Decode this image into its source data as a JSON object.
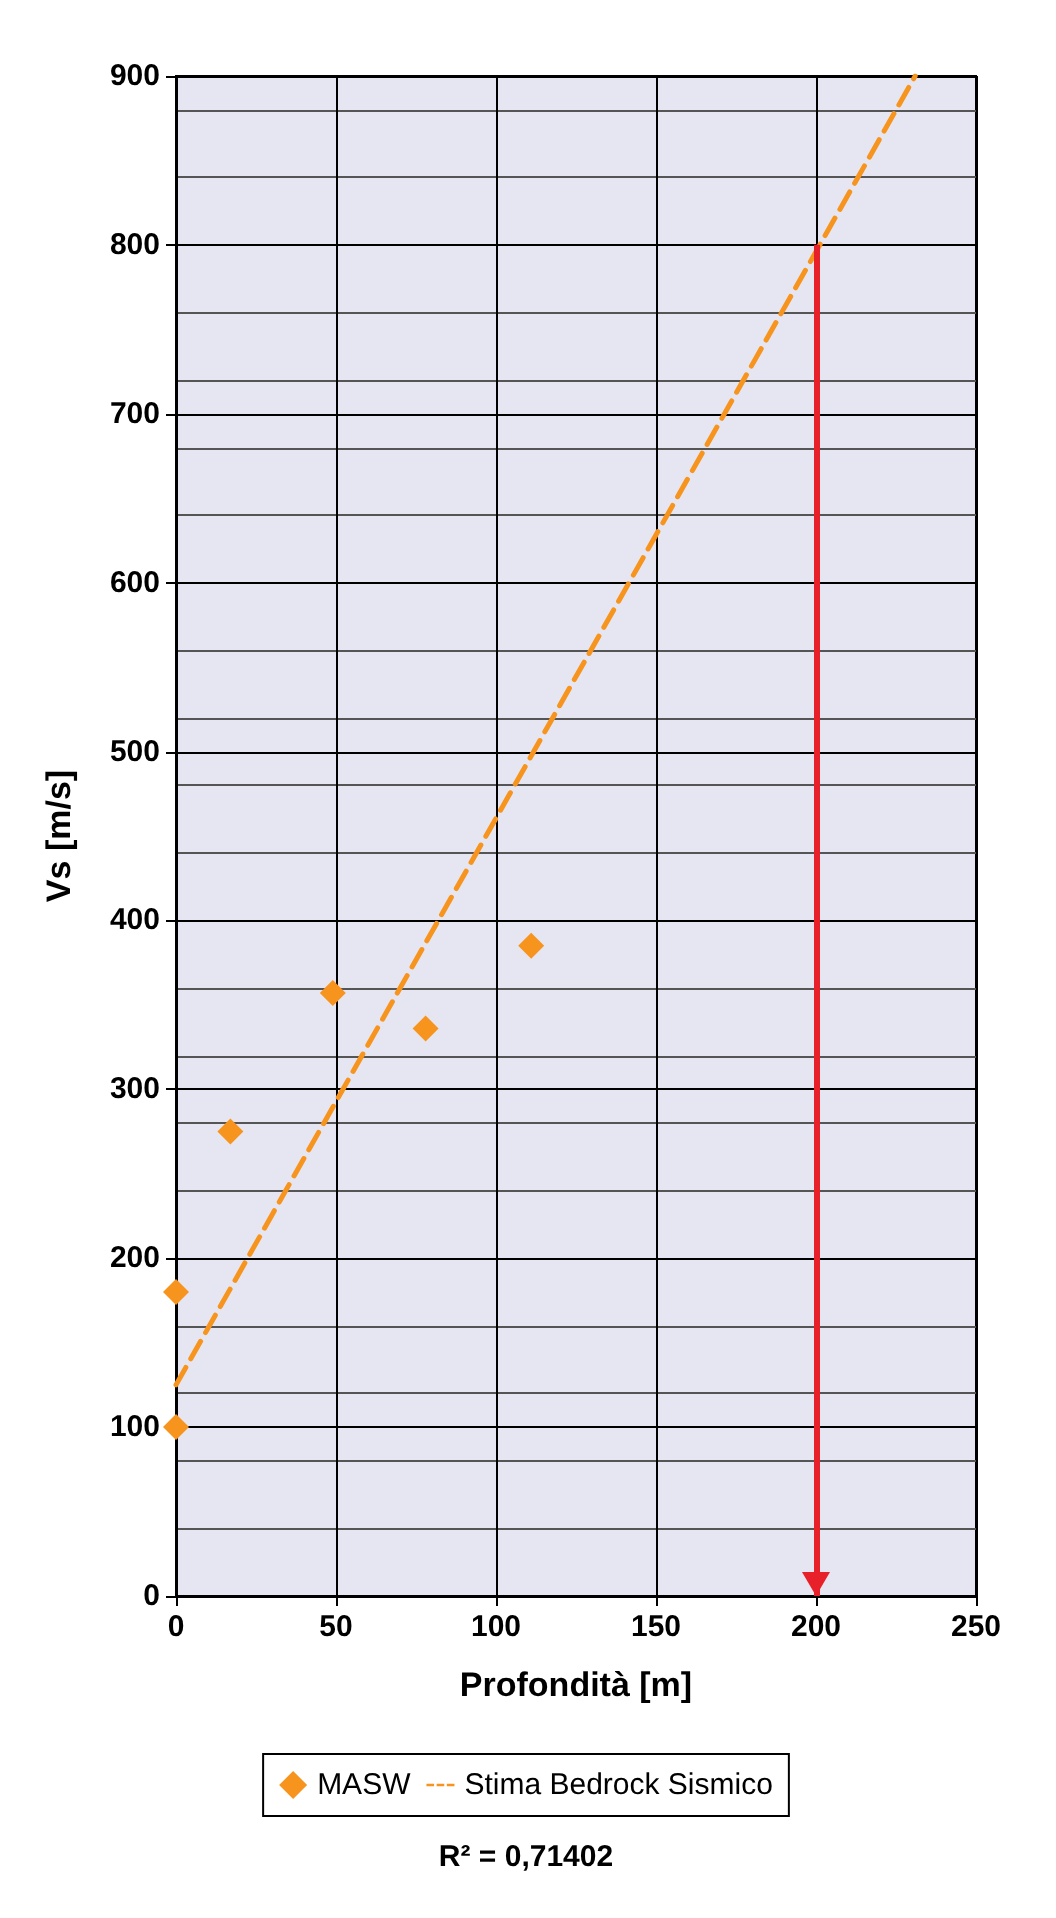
{
  "chart_data": {
    "type": "scatter",
    "xlabel": "Profondità [m]",
    "ylabel": "Vs [m/s]",
    "xlim": [
      0,
      250
    ],
    "xticks": [
      0,
      50,
      100,
      150,
      200,
      250
    ],
    "ylim": [
      0,
      900
    ],
    "yticks": [
      0,
      100,
      200,
      300,
      400,
      500,
      600,
      700,
      800,
      900
    ],
    "grid": true,
    "legend": "bottom",
    "marker": "diamond",
    "series": [
      {
        "name": "MASW",
        "color": "#f7941d",
        "x": [
          0,
          0,
          17,
          49,
          78,
          111
        ],
        "values": [
          100,
          180,
          275,
          357,
          336,
          385
        ]
      },
      {
        "name": "Stima Bedrock Sismico",
        "type": "line",
        "color": "#f7941d",
        "line_style": "dashed",
        "marker": "none",
        "x": [
          0,
          231
        ],
        "values": [
          125,
          900
        ]
      }
    ],
    "ref_lines": [
      {
        "axis": "x",
        "value": 200,
        "color": "#e8202a"
      }
    ],
    "annotations": [
      "R² = 0,71402"
    ]
  }
}
